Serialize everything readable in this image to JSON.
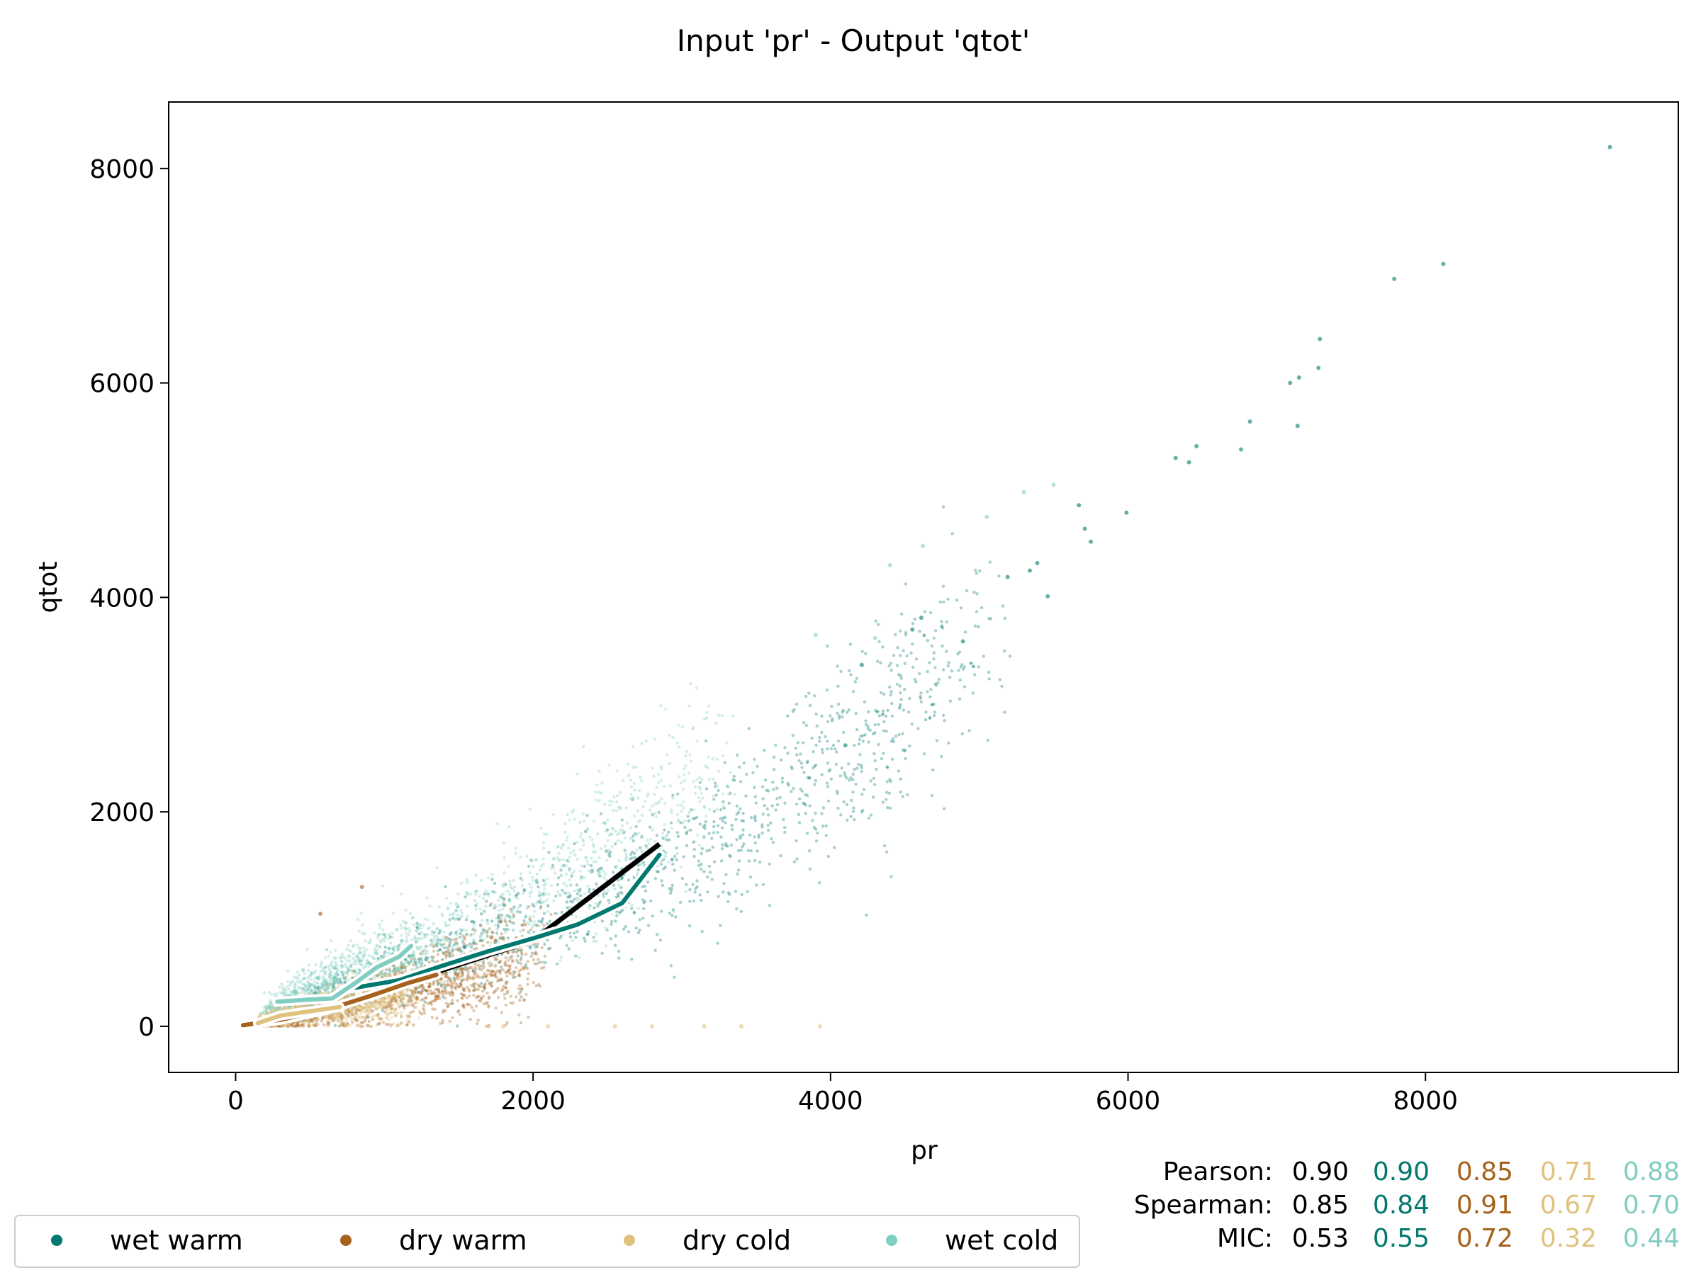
{
  "chart_data": {
    "type": "scatter",
    "title": "Input 'pr' - Output 'qtot'",
    "xlabel": "pr",
    "ylabel": "qtot",
    "xlim": [
      -450,
      9700
    ],
    "ylim": [
      -430,
      8620
    ],
    "x_ticks": [
      0,
      2000,
      4000,
      6000,
      8000
    ],
    "y_ticks": [
      0,
      2000,
      4000,
      6000,
      8000
    ],
    "grid": false,
    "legend_position": "bottom-left, below axes",
    "series": [
      {
        "name": "wet warm",
        "color": "#01796f",
        "cloud": {
          "center": [
            [
              300,
              150
            ],
            [
              1000,
              500
            ],
            [
              1800,
              850
            ],
            [
              2600,
              1250
            ],
            [
              3400,
              1850
            ],
            [
              4200,
              2650
            ],
            [
              5000,
              3600
            ]
          ],
          "spread": [
            60,
            120,
            230,
            300,
            350,
            420,
            480
          ]
        },
        "points": [
          [
            9240,
            8200
          ],
          [
            8120,
            7110
          ],
          [
            7790,
            6970
          ],
          [
            7290,
            6410
          ],
          [
            7280,
            6140
          ],
          [
            7090,
            6000
          ],
          [
            7150,
            6050
          ],
          [
            7140,
            5600
          ],
          [
            6820,
            5640
          ],
          [
            6760,
            5380
          ],
          [
            6460,
            5410
          ],
          [
            6410,
            5260
          ],
          [
            6320,
            5300
          ],
          [
            5990,
            4790
          ],
          [
            5750,
            4520
          ],
          [
            5710,
            4640
          ],
          [
            5670,
            4860
          ],
          [
            5460,
            4010
          ],
          [
            5390,
            4320
          ],
          [
            5340,
            4250
          ],
          [
            5190,
            4190
          ],
          [
            4890,
            3590
          ],
          [
            4610,
            3810
          ],
          [
            4550,
            3700
          ],
          [
            4210,
            3370
          ],
          [
            4100,
            2620
          ]
        ],
        "trend": [
          [
            720,
            340
          ],
          [
            1100,
            430
          ],
          [
            1380,
            560
          ],
          [
            1700,
            700
          ],
          [
            2000,
            820
          ],
          [
            2300,
            950
          ],
          [
            2600,
            1150
          ],
          [
            2850,
            1600
          ]
        ]
      },
      {
        "name": "dry warm",
        "color": "#a6611a",
        "cloud": {
          "center": [
            [
              200,
              20
            ],
            [
              500,
              100
            ],
            [
              900,
              230
            ],
            [
              1300,
              380
            ],
            [
              1600,
              500
            ],
            [
              2000,
              620
            ]
          ],
          "spread": [
            25,
            70,
            130,
            170,
            200,
            230
          ]
        },
        "points": [
          [
            850,
            1300
          ],
          [
            570,
            1050
          ],
          [
            1900,
            760
          ],
          [
            1720,
            830
          ]
        ],
        "trend": [
          [
            50,
            10
          ],
          [
            300,
            60
          ],
          [
            600,
            150
          ],
          [
            900,
            280
          ],
          [
            1150,
            400
          ],
          [
            1350,
            480
          ]
        ]
      },
      {
        "name": "dry cold",
        "color": "#dfc27d",
        "cloud": {
          "center": [
            [
              150,
              50
            ],
            [
              350,
              120
            ],
            [
              600,
              200
            ],
            [
              900,
              280
            ],
            [
              1200,
              360
            ]
          ],
          "spread": [
            30,
            60,
            80,
            110,
            140
          ]
        },
        "points": [
          [
            1700,
            0
          ],
          [
            1800,
            0
          ],
          [
            2100,
            0
          ],
          [
            2550,
            0
          ],
          [
            2800,
            0
          ],
          [
            3150,
            0
          ],
          [
            3400,
            0
          ],
          [
            3930,
            0
          ]
        ],
        "trend": [
          [
            150,
            30
          ],
          [
            300,
            100
          ],
          [
            500,
            140
          ],
          [
            700,
            180
          ]
        ]
      },
      {
        "name": "wet cold",
        "color": "#80cdc1",
        "cloud": {
          "center": [
            [
              200,
              150
            ],
            [
              400,
              300
            ],
            [
              650,
              470
            ],
            [
              900,
              630
            ],
            [
              1200,
              750
            ],
            [
              1700,
              1000
            ],
            [
              2200,
              1400
            ],
            [
              2700,
              1900
            ],
            [
              3200,
              2400
            ]
          ],
          "spread": [
            40,
            80,
            120,
            150,
            170,
            220,
            300,
            380,
            420
          ]
        },
        "points": [
          [
            4620,
            4480
          ],
          [
            4400,
            4300
          ],
          [
            4300,
            3620
          ],
          [
            3900,
            3650
          ],
          [
            5300,
            4980
          ],
          [
            5500,
            5050
          ],
          [
            5050,
            4750
          ]
        ],
        "trend": [
          [
            280,
            230
          ],
          [
            500,
            250
          ],
          [
            650,
            260
          ],
          [
            800,
            400
          ],
          [
            950,
            550
          ],
          [
            1100,
            650
          ],
          [
            1180,
            750
          ]
        ]
      }
    ],
    "overall_trend": {
      "color": "#000000",
      "points": [
        [
          720,
          340
        ],
        [
          1100,
          450
        ],
        [
          1380,
          520
        ],
        [
          2000,
          800
        ],
        [
          2850,
          1700
        ]
      ]
    },
    "stats": {
      "rows": [
        {
          "label": "Pearson:",
          "values": [
            "0.90",
            "0.90",
            "0.85",
            "0.71",
            "0.88"
          ]
        },
        {
          "label": "Spearman:",
          "values": [
            "0.85",
            "0.84",
            "0.91",
            "0.67",
            "0.70"
          ]
        },
        {
          "label": "MIC:",
          "values": [
            "0.53",
            "0.55",
            "0.72",
            "0.32",
            "0.44"
          ]
        }
      ],
      "column_colors": [
        "#000000",
        "#01796f",
        "#a6611a",
        "#dfc27d",
        "#80cdc1"
      ]
    }
  }
}
